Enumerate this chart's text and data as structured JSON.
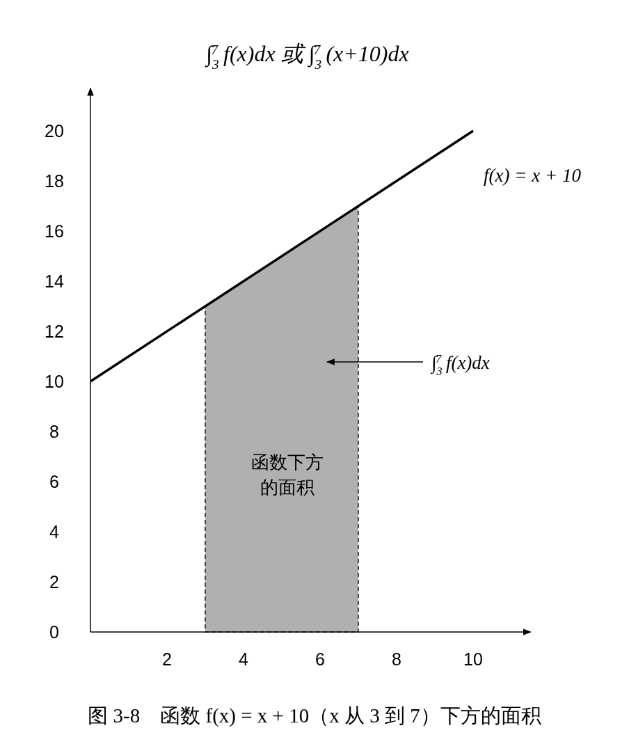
{
  "chart_data": {
    "type": "line",
    "title": "∫$_{3}$$^{7}$ f(x)dx 或 ∫$_{3}$$^{7}$ (x+10)dx",
    "xlim": [
      0,
      11.5
    ],
    "ylim": [
      0,
      21.7
    ],
    "xticks": [
      2,
      4,
      6,
      8,
      10
    ],
    "yticks": [
      0,
      2,
      4,
      6,
      8,
      10,
      12,
      14,
      16,
      18,
      20
    ],
    "grid": false,
    "legend": false,
    "marker": "none",
    "series": [
      {
        "type": "area",
        "color": "#b0b0b0",
        "x": [
          3,
          7
        ],
        "values": [
          13,
          17
        ],
        "line_style": "dashed"
      },
      {
        "name": "f(x) = x + 10",
        "color": "#000000",
        "x": [
          0,
          10
        ],
        "values": [
          10,
          20
        ],
        "line_style": "solid"
      }
    ],
    "annotations": [
      "函数下方的面积",
      "∫$_{3}$$^{7}$ f(x)dx",
      "图 3-8　函数 f(x) = x + 10（x 从 3 到 7）下方的面积"
    ]
  }
}
